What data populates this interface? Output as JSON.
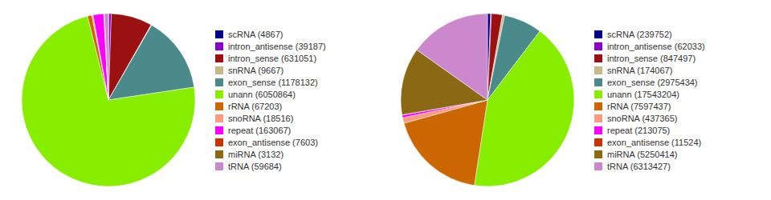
{
  "chart_data": [
    {
      "type": "pie",
      "categories": [
        "scRNA (4867)",
        "intron_antisense (39187)",
        "intron_sense (631051)",
        "snRNA (9667)",
        "exon_sense (1178132)",
        "unann (6050864)",
        "rRNA (67203)",
        "snoRNA (18516)",
        "repeat (163067)",
        "exon_antisense (7603)",
        "miRNA (3132)",
        "tRNA (59684)"
      ],
      "values": [
        4867,
        39187,
        631051,
        9667,
        1178132,
        6050864,
        67203,
        18516,
        163067,
        7603,
        3132,
        59684
      ],
      "colors": [
        "#00008b",
        "#8b00c8",
        "#9b1010",
        "#c8b888",
        "#4a8a8a",
        "#88ee00",
        "#cc6600",
        "#ff9980",
        "#ff00ff",
        "#cc3300",
        "#8b6914",
        "#cc88cc"
      ],
      "legend": "right"
    },
    {
      "type": "pie",
      "categories": [
        "scRNA (239752)",
        "intron_antisense (62033)",
        "intron_sense (847497)",
        "snRNA (174067)",
        "exon_sense (2975434)",
        "unann (17543204)",
        "rRNA (7597437)",
        "snoRNA (437365)",
        "repeat (213075)",
        "exon_antisense (11524)",
        "miRNA (5250414)",
        "tRNA (6313427)"
      ],
      "values": [
        239752,
        62033,
        847497,
        174067,
        2975434,
        17543204,
        7597437,
        437365,
        213075,
        11524,
        5250414,
        6313427
      ],
      "colors": [
        "#00008b",
        "#8b00c8",
        "#9b1010",
        "#c8b888",
        "#4a8a8a",
        "#88ee00",
        "#cc6600",
        "#ff9980",
        "#ff00ff",
        "#cc3300",
        "#8b6914",
        "#cc88cc"
      ],
      "legend": "right"
    }
  ]
}
